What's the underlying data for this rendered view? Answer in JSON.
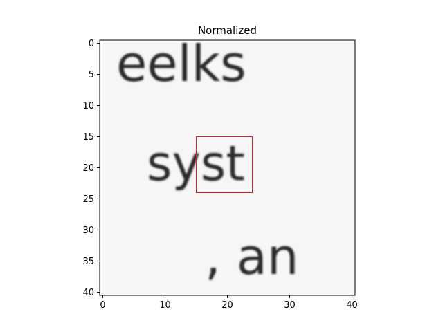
{
  "chart_data": {
    "type": "heatmap",
    "title": "Normalized",
    "xlabel": "",
    "ylabel": "",
    "xlim": [
      -0.5,
      40.5
    ],
    "ylim": [
      40.5,
      -0.5
    ],
    "xticks": [
      0,
      10,
      20,
      30,
      40
    ],
    "yticks": [
      0,
      5,
      10,
      15,
      20,
      25,
      30,
      35,
      40
    ],
    "colormap": "gray",
    "grid": false,
    "image_text_rows": [
      {
        "text": "eelks",
        "y": 4
      },
      {
        "text": "syst",
        "y": 20
      },
      {
        "text": ", an",
        "y": 35
      }
    ],
    "highlight_box": {
      "x0": 15,
      "y0": 15,
      "x1": 24,
      "y1": 24,
      "color": "#e41a1c"
    }
  }
}
